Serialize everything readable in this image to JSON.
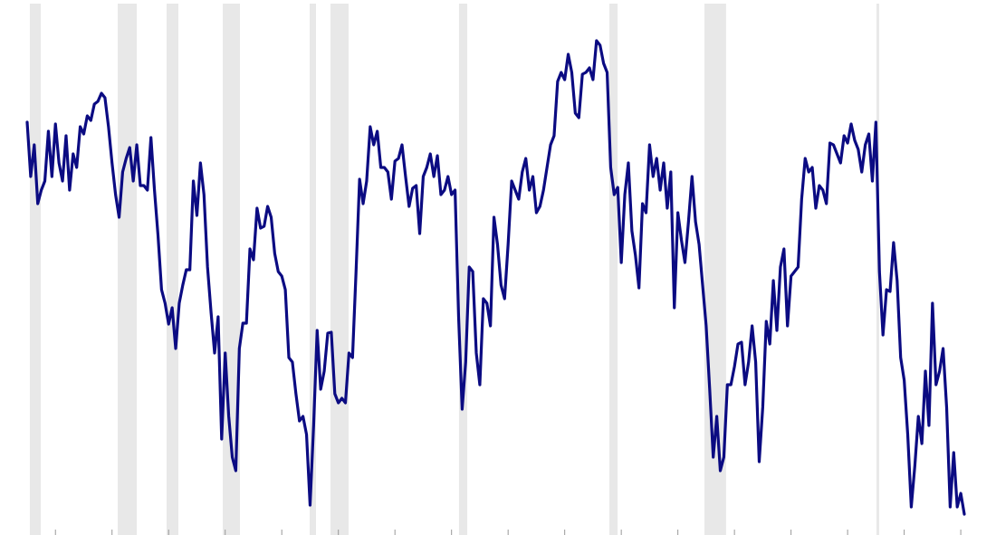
{
  "chart_data": {
    "type": "line",
    "xlim": [
      1958.08,
      2028.49
    ],
    "ylim": [
      0,
      591
    ],
    "xticks": [
      1962,
      1966,
      1970,
      1974,
      1978,
      1982,
      1986,
      1990,
      1994,
      1998,
      2002,
      2006,
      2010,
      2014,
      2018,
      2022,
      2026
    ],
    "shaded_color": "#e8e8e8",
    "shaded_periods": [
      [
        1960.19,
        1960.96
      ],
      [
        1966.4,
        1967.75
      ],
      [
        1969.86,
        1970.69
      ],
      [
        1973.83,
        1975.04
      ],
      [
        1979.97,
        1980.42
      ],
      [
        1981.44,
        1982.72
      ],
      [
        1990.53,
        1991.11
      ],
      [
        2001.16,
        2001.74
      ],
      [
        2007.88,
        2009.41
      ],
      [
        2020.04,
        2020.23
      ]
    ],
    "x": [
      1960,
      1960.25,
      1960.5,
      1960.75,
      1961,
      1961.25,
      1961.5,
      1961.75,
      1962,
      1962.25,
      1962.5,
      1962.75,
      1963,
      1963.25,
      1963.5,
      1963.75,
      1964,
      1964.25,
      1964.5,
      1964.75,
      1965,
      1965.25,
      1965.5,
      1965.75,
      1966,
      1966.25,
      1966.5,
      1966.75,
      1967,
      1967.25,
      1967.5,
      1967.75,
      1968,
      1968.25,
      1968.5,
      1968.75,
      1969,
      1969.25,
      1969.5,
      1969.75,
      1970,
      1970.25,
      1970.5,
      1970.75,
      1971,
      1971.25,
      1971.5,
      1971.75,
      1972,
      1972.25,
      1972.5,
      1972.75,
      1973,
      1973.25,
      1973.5,
      1973.75,
      1974,
      1974.25,
      1974.5,
      1974.75,
      1975,
      1975.25,
      1975.5,
      1975.75,
      1976,
      1976.25,
      1976.5,
      1976.75,
      1977,
      1977.25,
      1977.5,
      1977.75,
      1978,
      1978.25,
      1978.5,
      1978.75,
      1979,
      1979.25,
      1979.5,
      1979.75,
      1980,
      1980.25,
      1980.5,
      1980.75,
      1981,
      1981.25,
      1981.5,
      1981.75,
      1982,
      1982.25,
      1982.5,
      1982.75,
      1983,
      1983.25,
      1983.5,
      1983.75,
      1984,
      1984.25,
      1984.5,
      1984.75,
      1985,
      1985.25,
      1985.5,
      1985.75,
      1986,
      1986.25,
      1986.5,
      1986.75,
      1987,
      1987.25,
      1987.5,
      1987.75,
      1988,
      1988.25,
      1988.5,
      1988.75,
      1989,
      1989.25,
      1989.5,
      1989.75,
      1990,
      1990.25,
      1990.5,
      1990.75,
      1991,
      1991.25,
      1991.5,
      1991.75,
      1992,
      1992.25,
      1992.5,
      1992.75,
      1993,
      1993.25,
      1993.5,
      1993.75,
      1994,
      1994.25,
      1994.5,
      1994.75,
      1995,
      1995.25,
      1995.5,
      1995.75,
      1996,
      1996.25,
      1996.5,
      1996.75,
      1997,
      1997.25,
      1997.5,
      1997.75,
      1998,
      1998.25,
      1998.5,
      1998.75,
      1999,
      1999.25,
      1999.5,
      1999.75,
      2000,
      2000.25,
      2000.5,
      2000.75,
      2001,
      2001.25,
      2001.5,
      2001.75,
      2002,
      2002.25,
      2002.5,
      2002.75,
      2003,
      2003.25,
      2003.5,
      2003.75,
      2004,
      2004.25,
      2004.5,
      2004.75,
      2005,
      2005.25,
      2005.5,
      2005.75,
      2006,
      2006.25,
      2006.5,
      2006.75,
      2007,
      2007.25,
      2007.5,
      2007.75,
      2008,
      2008.25,
      2008.5,
      2008.75,
      2009,
      2009.25,
      2009.5,
      2009.75,
      2010,
      2010.25,
      2010.5,
      2010.75,
      2011,
      2011.25,
      2011.5,
      2011.75,
      2012,
      2012.25,
      2012.5,
      2012.75,
      2013,
      2013.25,
      2013.5,
      2013.75,
      2014,
      2014.25,
      2014.5,
      2014.75,
      2015,
      2015.25,
      2015.5,
      2015.75,
      2016,
      2016.25,
      2016.5,
      2016.75,
      2017,
      2017.25,
      2017.5,
      2017.75,
      2018,
      2018.25,
      2018.5,
      2018.75,
      2019,
      2019.25,
      2019.5,
      2019.75,
      2020,
      2020.25,
      2020.5,
      2020.75,
      2021,
      2021.25,
      2021.5,
      2021.75,
      2022,
      2022.25,
      2022.5,
      2022.75,
      2023,
      2023.25,
      2023.5,
      2023.75,
      2024,
      2024.25,
      2024.5,
      2024.75,
      2025,
      2025.25,
      2025.5,
      2025.75,
      2026,
      2026.25
    ],
    "series": [
      {
        "color": "#0b0b82",
        "values": [
          456,
          396,
          431,
          366,
          381,
          391,
          446,
          396,
          454,
          411,
          391,
          441,
          381,
          421,
          406,
          451,
          443,
          463,
          458,
          476,
          479,
          488,
          483,
          451,
          411,
          376,
          351,
          401,
          416,
          428,
          391,
          431,
          386,
          386,
          381,
          439,
          381,
          331,
          271,
          256,
          233,
          251,
          206,
          256,
          276,
          293,
          293,
          391,
          353,
          411,
          376,
          296,
          246,
          201,
          241,
          106,
          201,
          131,
          86,
          71,
          206,
          234,
          234,
          316,
          304,
          361,
          339,
          341,
          363,
          351,
          311,
          291,
          286,
          271,
          196,
          191,
          156,
          126,
          131,
          111,
          33,
          121,
          226,
          161,
          181,
          223,
          224,
          156,
          146,
          151,
          146,
          201,
          196,
          291,
          393,
          366,
          391,
          451,
          431,
          446,
          406,
          406,
          401,
          371,
          413,
          416,
          431,
          396,
          363,
          383,
          386,
          333,
          396,
          406,
          421,
          396,
          419,
          376,
          381,
          396,
          376,
          381,
          241,
          139,
          191,
          296,
          291,
          201,
          166,
          261,
          256,
          231,
          351,
          321,
          276,
          261,
          321,
          391,
          381,
          371,
          401,
          416,
          381,
          396,
          356,
          363,
          381,
          406,
          431,
          441,
          501,
          511,
          503,
          531,
          511,
          466,
          461,
          509,
          511,
          516,
          503,
          546,
          541,
          521,
          511,
          406,
          376,
          384,
          301,
          376,
          411,
          336,
          309,
          273,
          366,
          356,
          431,
          396,
          416,
          381,
          411,
          361,
          401,
          251,
          356,
          326,
          301,
          346,
          396,
          346,
          321,
          276,
          231,
          161,
          86,
          131,
          71,
          86,
          166,
          166,
          186,
          211,
          213,
          166,
          191,
          231,
          191,
          81,
          141,
          236,
          211,
          281,
          226,
          296,
          316,
          231,
          286,
          291,
          296,
          371,
          416,
          401,
          406,
          361,
          386,
          381,
          366,
          433,
          431,
          421,
          411,
          441,
          433,
          454,
          436,
          426,
          401,
          431,
          443,
          391,
          456,
          291,
          221,
          271,
          269,
          323,
          281,
          196,
          171,
          111,
          31,
          76,
          131,
          101,
          181,
          121,
          256,
          166,
          181,
          206,
          141,
          31,
          91,
          31,
          46,
          23
        ]
      }
    ]
  }
}
